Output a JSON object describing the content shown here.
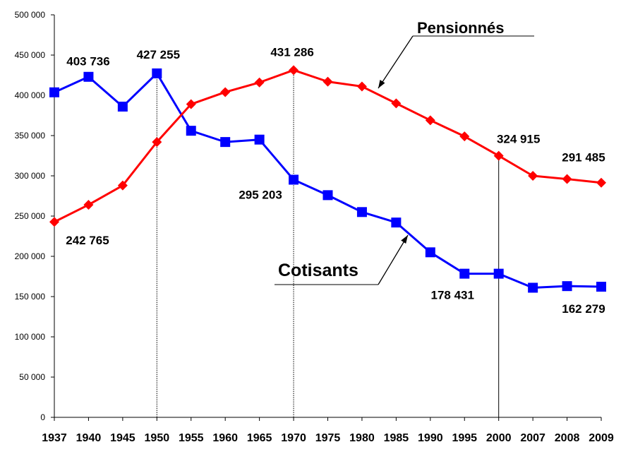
{
  "chart_data": {
    "type": "line",
    "title": "",
    "xlabel": "",
    "ylabel": "",
    "ylim": [
      0,
      500000
    ],
    "yticks": [
      0,
      50000,
      100000,
      150000,
      200000,
      250000,
      300000,
      350000,
      400000,
      450000,
      500000
    ],
    "ytick_labels": [
      "0",
      "50 000",
      "100 000",
      "150 000",
      "200 000",
      "250 000",
      "300 000",
      "350 000",
      "400 000",
      "450 000",
      "500 000"
    ],
    "categories": [
      "1937",
      "1940",
      "1945",
      "1950",
      "1955",
      "1960",
      "1965",
      "1970",
      "1975",
      "1980",
      "1985",
      "1990",
      "1995",
      "2000",
      "2007",
      "2008",
      "2009"
    ],
    "grid": false,
    "legend": "none",
    "series": [
      {
        "name": "Cotisants",
        "color": "#0000ff",
        "marker": "square",
        "values": [
          403736,
          423000,
          386000,
          427255,
          356000,
          342000,
          345000,
          295203,
          276000,
          255000,
          242000,
          205000,
          178431,
          178431,
          161000,
          163000,
          162279
        ]
      },
      {
        "name": "Pensionnés",
        "color": "#ff0000",
        "marker": "diamond",
        "values": [
          242765,
          264000,
          288000,
          342000,
          389000,
          404000,
          416000,
          431286,
          417000,
          411000,
          390000,
          369000,
          349000,
          324915,
          300000,
          296000,
          291485
        ]
      }
    ],
    "reference_lines": [
      {
        "x": "1950",
        "style": "dotted"
      },
      {
        "x": "1970",
        "style": "dotted"
      },
      {
        "x": "2000",
        "style": "solid"
      }
    ],
    "annotations": [
      {
        "text": "403 736",
        "series": 0,
        "x": "1937"
      },
      {
        "text": "427 255",
        "series": 0,
        "x": "1950"
      },
      {
        "text": "431 286",
        "series": 1,
        "x": "1970"
      },
      {
        "text": "295 203",
        "series": 0,
        "x": "1970"
      },
      {
        "text": "242 765",
        "series": 1,
        "x": "1937"
      },
      {
        "text": "324 915",
        "series": 1,
        "x": "2000"
      },
      {
        "text": "178 431",
        "series": 0,
        "x": "1995"
      },
      {
        "text": "291 485",
        "series": 1,
        "x": "2009"
      },
      {
        "text": "162 279",
        "series": 0,
        "x": "2009"
      }
    ]
  }
}
